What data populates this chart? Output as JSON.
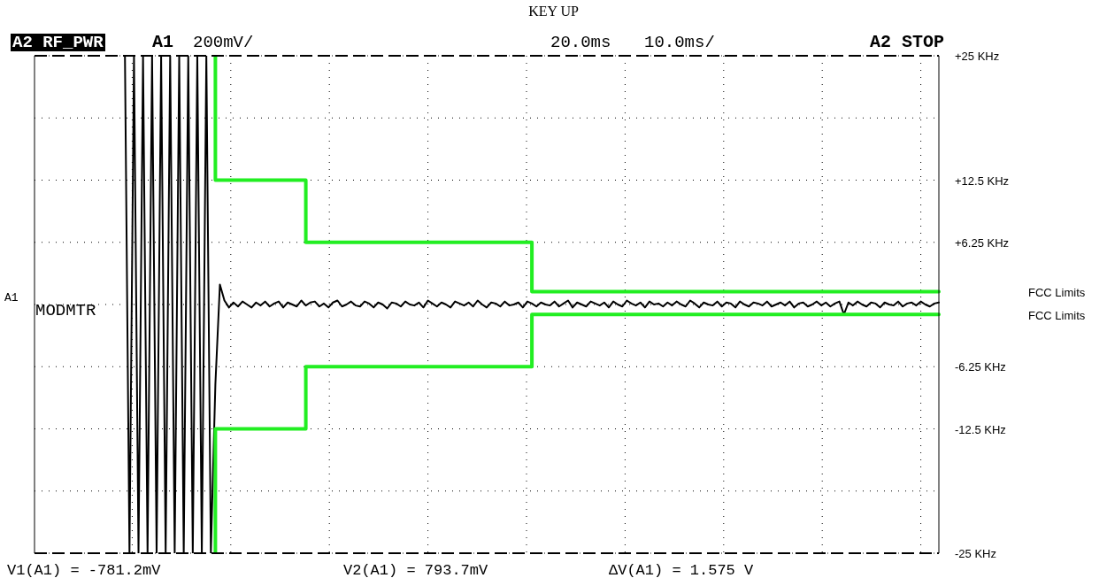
{
  "chart_data": {
    "type": "line",
    "title": "KEY UP",
    "categories": [
      null,
      null,
      null,
      null,
      null,
      null,
      null,
      null,
      null,
      null,
      null,
      null,
      null,
      null,
      null,
      null,
      null,
      null,
      null,
      null,
      null,
      null,
      null,
      null,
      null,
      null,
      null,
      null,
      null,
      null,
      null,
      null,
      null,
      null,
      null,
      null,
      null,
      null,
      null,
      null,
      null,
      null,
      null,
      null,
      null,
      null,
      null,
      null,
      null,
      null,
      null,
      null,
      null,
      null,
      null,
      null,
      null,
      null,
      null,
      null,
      null,
      null,
      null,
      null,
      null,
      null,
      null,
      null,
      null,
      null,
      null,
      null,
      null,
      null,
      null,
      null,
      null,
      null,
      null,
      null,
      null,
      null,
      null,
      null,
      null,
      null,
      null,
      null,
      null,
      null,
      null,
      null,
      null,
      null,
      null,
      null,
      null,
      null,
      null,
      null,
      null,
      null,
      null,
      null,
      null,
      null,
      null,
      null,
      null,
      null,
      null,
      null,
      null,
      null,
      null,
      null,
      null,
      null,
      null,
      null,
      null,
      null,
      null,
      null,
      null,
      null,
      null,
      null,
      null,
      null,
      null,
      null,
      null,
      null,
      null,
      null,
      null,
      null,
      null,
      null,
      null,
      null,
      null,
      null,
      null,
      null,
      null,
      null,
      null,
      null,
      null,
      null,
      null,
      null,
      null,
      null,
      null,
      null,
      null,
      null,
      null,
      null,
      null,
      null,
      null,
      null,
      null,
      null,
      null,
      null,
      null,
      null,
      null,
      null,
      null,
      null,
      null,
      null,
      null,
      null,
      null,
      null,
      null,
      null,
      null,
      null,
      null,
      null,
      null,
      null,
      null,
      null,
      null,
      null,
      null,
      null,
      null,
      null,
      null,
      null,
      null
    ],
    "series": [
      {
        "type": "line",
        "color": "#000000",
        "values": [
          null,
          null,
          null,
          null,
          null,
          null,
          null,
          null,
          null,
          null,
          null,
          null,
          null,
          null,
          null,
          null,
          null,
          null,
          null,
          null,
          25,
          -25,
          25,
          -25,
          25,
          -25,
          25,
          -25,
          25,
          -25,
          25,
          -25,
          25,
          -25,
          25,
          -25,
          25,
          -25,
          25,
          -25,
          -8,
          2,
          0.4,
          -0.3,
          0.2,
          -0.2,
          0.3,
          0,
          -0.3,
          0.2,
          -0.1,
          0.3,
          -0.2,
          0.1,
          0.3,
          -0.3,
          0.2,
          0,
          -0.2,
          0.4,
          -0.1,
          0.2,
          0.3,
          -0.2,
          0.1,
          -0.3,
          0.2,
          0.4,
          -0.2,
          0,
          0.3,
          -0.1,
          -0.2,
          0.3,
          0.1,
          -0.3,
          0.2,
          0,
          -0.4,
          0.2,
          0.1,
          -0.2,
          0.3,
          0,
          -0.1,
          0.2,
          -0.3,
          0.4,
          0.1,
          -0.2,
          0.2,
          0,
          -0.3,
          0.3,
          0.1,
          -0.1,
          0.2,
          -0.2,
          0.4,
          0,
          -0.3,
          0.2,
          0.1,
          -0.2,
          0.3,
          -0.1,
          0,
          0.2,
          -0.3,
          0.3,
          0.1,
          -0.2,
          0.2,
          0,
          -0.1,
          0.3,
          -0.2,
          0.1,
          0.4,
          -0.3,
          0.2,
          0,
          -0.2,
          0.3,
          0.1,
          -0.1,
          0.2,
          -0.3,
          0.3,
          0,
          -0.2,
          0.4,
          0.1,
          -0.1,
          0.2,
          -0.3,
          0.3,
          0,
          0.1,
          -0.2,
          0.2,
          -0.1,
          0.3,
          0,
          -0.2,
          0.4,
          0.1,
          -0.3,
          0.2,
          0,
          -0.1,
          0.3,
          -0.2,
          0.2,
          0.1,
          -0.3,
          0.3,
          0,
          -0.2,
          0.2,
          0.1,
          -0.1,
          0.3,
          -0.2,
          0,
          0.2,
          -0.1,
          0.3,
          -0.3,
          0.1,
          0.2,
          -0.2,
          0,
          0.3,
          -0.1,
          0.2,
          -0.2,
          0.1,
          0.3,
          -1,
          0.2,
          -0.1,
          0.3,
          0,
          -0.2,
          0.2,
          0.1,
          -0.3,
          0.2,
          0,
          -0.1,
          0.3,
          -0.2,
          0.1,
          0.2,
          -0.1,
          0.3,
          0,
          -0.2,
          0.1,
          0.2
        ]
      },
      {
        "type": "step",
        "color": "#22ee22",
        "values": [
          null,
          null,
          null,
          null,
          null,
          null,
          null,
          null,
          null,
          null,
          null,
          null,
          null,
          null,
          null,
          null,
          null,
          null,
          null,
          null,
          null,
          null,
          null,
          null,
          null,
          null,
          null,
          null,
          null,
          null,
          null,
          null,
          null,
          null,
          null,
          null,
          null,
          null,
          null,
          null,
          25,
          12.5,
          12.5,
          12.5,
          12.5,
          12.5,
          12.5,
          12.5,
          12.5,
          12.5,
          12.5,
          12.5,
          12.5,
          12.5,
          12.5,
          12.5,
          12.5,
          12.5,
          12.5,
          12.5,
          12.5,
          6.25,
          6.25,
          6.25,
          6.25,
          6.25,
          6.25,
          6.25,
          6.25,
          6.25,
          6.25,
          6.25,
          6.25,
          6.25,
          6.25,
          6.25,
          6.25,
          6.25,
          6.25,
          6.25,
          6.25,
          6.25,
          6.25,
          6.25,
          6.25,
          6.25,
          6.25,
          6.25,
          6.25,
          6.25,
          6.25,
          6.25,
          6.25,
          6.25,
          6.25,
          6.25,
          6.25,
          6.25,
          6.25,
          6.25,
          6.25,
          6.25,
          6.25,
          6.25,
          6.25,
          6.25,
          6.25,
          6.25,
          6.25,
          6.25,
          6.25,
          1.3,
          1.3,
          1.3,
          1.3,
          1.3,
          1.3,
          1.3,
          1.3,
          1.3,
          1.3,
          1.3,
          1.3,
          1.3,
          1.3,
          1.3,
          1.3,
          1.3,
          1.3,
          1.3,
          1.3,
          1.3,
          1.3,
          1.3,
          1.3,
          1.3,
          1.3,
          1.3,
          1.3,
          1.3,
          1.3,
          1.3,
          1.3,
          1.3,
          1.3,
          1.3,
          1.3,
          1.3,
          1.3,
          1.3,
          1.3,
          1.3,
          1.3,
          1.3,
          1.3,
          1.3,
          1.3,
          1.3,
          1.3,
          1.3,
          1.3,
          1.3,
          1.3,
          1.3,
          1.3,
          1.3,
          1.3,
          1.3,
          1.3,
          1.3,
          1.3,
          1.3,
          1.3,
          1.3,
          1.3,
          1.3,
          1.3,
          1.3,
          1.3,
          1.3,
          1.3,
          1.3,
          1.3,
          1.3,
          1.3,
          1.3,
          1.3,
          1.3,
          1.3,
          1.3,
          1.3,
          1.3,
          1.3,
          1.3,
          1.3,
          1.3,
          1.3,
          1.3,
          1.3,
          1.3,
          1.3
        ]
      },
      {
        "type": "step",
        "color": "#22ee22",
        "values": [
          null,
          null,
          null,
          null,
          null,
          null,
          null,
          null,
          null,
          null,
          null,
          null,
          null,
          null,
          null,
          null,
          null,
          null,
          null,
          null,
          null,
          null,
          null,
          null,
          null,
          null,
          null,
          null,
          null,
          null,
          null,
          null,
          null,
          null,
          null,
          null,
          null,
          null,
          null,
          null,
          -25,
          -12.5,
          -12.5,
          -12.5,
          -12.5,
          -12.5,
          -12.5,
          -12.5,
          -12.5,
          -12.5,
          -12.5,
          -12.5,
          -12.5,
          -12.5,
          -12.5,
          -12.5,
          -12.5,
          -12.5,
          -12.5,
          -12.5,
          -12.5,
          -6.25,
          -6.25,
          -6.25,
          -6.25,
          -6.25,
          -6.25,
          -6.25,
          -6.25,
          -6.25,
          -6.25,
          -6.25,
          -6.25,
          -6.25,
          -6.25,
          -6.25,
          -6.25,
          -6.25,
          -6.25,
          -6.25,
          -6.25,
          -6.25,
          -6.25,
          -6.25,
          -6.25,
          -6.25,
          -6.25,
          -6.25,
          -6.25,
          -6.25,
          -6.25,
          -6.25,
          -6.25,
          -6.25,
          -6.25,
          -6.25,
          -6.25,
          -6.25,
          -6.25,
          -6.25,
          -6.25,
          -6.25,
          -6.25,
          -6.25,
          -6.25,
          -6.25,
          -6.25,
          -6.25,
          -6.25,
          -6.25,
          -6.25,
          -1,
          -1,
          -1,
          -1,
          -1,
          -1,
          -1,
          -1,
          -1,
          -1,
          -1,
          -1,
          -1,
          -1,
          -1,
          -1,
          -1,
          -1,
          -1,
          -1,
          -1,
          -1,
          -1,
          -1,
          -1,
          -1,
          -1,
          -1,
          -1,
          -1,
          -1,
          -1,
          -1,
          -1,
          -1,
          -1,
          -1,
          -1,
          -1,
          -1,
          -1,
          -1,
          -1,
          -1,
          -1,
          -1,
          -1,
          -1,
          -1,
          -1,
          -1,
          -1,
          -1,
          -1,
          -1,
          -1,
          -1,
          -1,
          -1,
          -1,
          -1,
          -1,
          -1,
          -1,
          -1,
          -1,
          -1,
          -1,
          -1,
          -1,
          -1,
          -1,
          -1,
          -1,
          -1,
          -1,
          -1,
          -1,
          -1,
          -1,
          -1,
          -1,
          -1,
          -1,
          -1,
          -1,
          -1,
          -1,
          -1,
          -1
        ]
      }
    ],
    "ylim": [
      -25,
      25
    ],
    "yticks": [
      {
        "value": 25,
        "label": "+25 KHz"
      },
      {
        "value": 18.75,
        "label": null
      },
      {
        "value": 12.5,
        "label": "+12.5 KHz"
      },
      {
        "value": 6.25,
        "label": "+6.25 KHz"
      },
      {
        "value": 0,
        "label": null
      },
      {
        "value": -6.25,
        "label": "-6.25 KHz"
      },
      {
        "value": -12.5,
        "label": "-12.5 KHz"
      },
      {
        "value": -18.75,
        "label": null
      },
      {
        "value": -25,
        "label": "-25 KHz"
      }
    ],
    "tick_labels": "y",
    "grid": true,
    "annotations": [
      "A2 RF_PWR",
      "A1",
      "200mV/",
      "20.0ms",
      "10.0ms/",
      "A2 STOP",
      "A1",
      "MODMTR",
      "V1(A1) = -781.2mV",
      "V2(A1) = 793.7mV",
      "ΔV(A1) = 1.575 V",
      "FCC Limits",
      "FCC Limits"
    ]
  }
}
